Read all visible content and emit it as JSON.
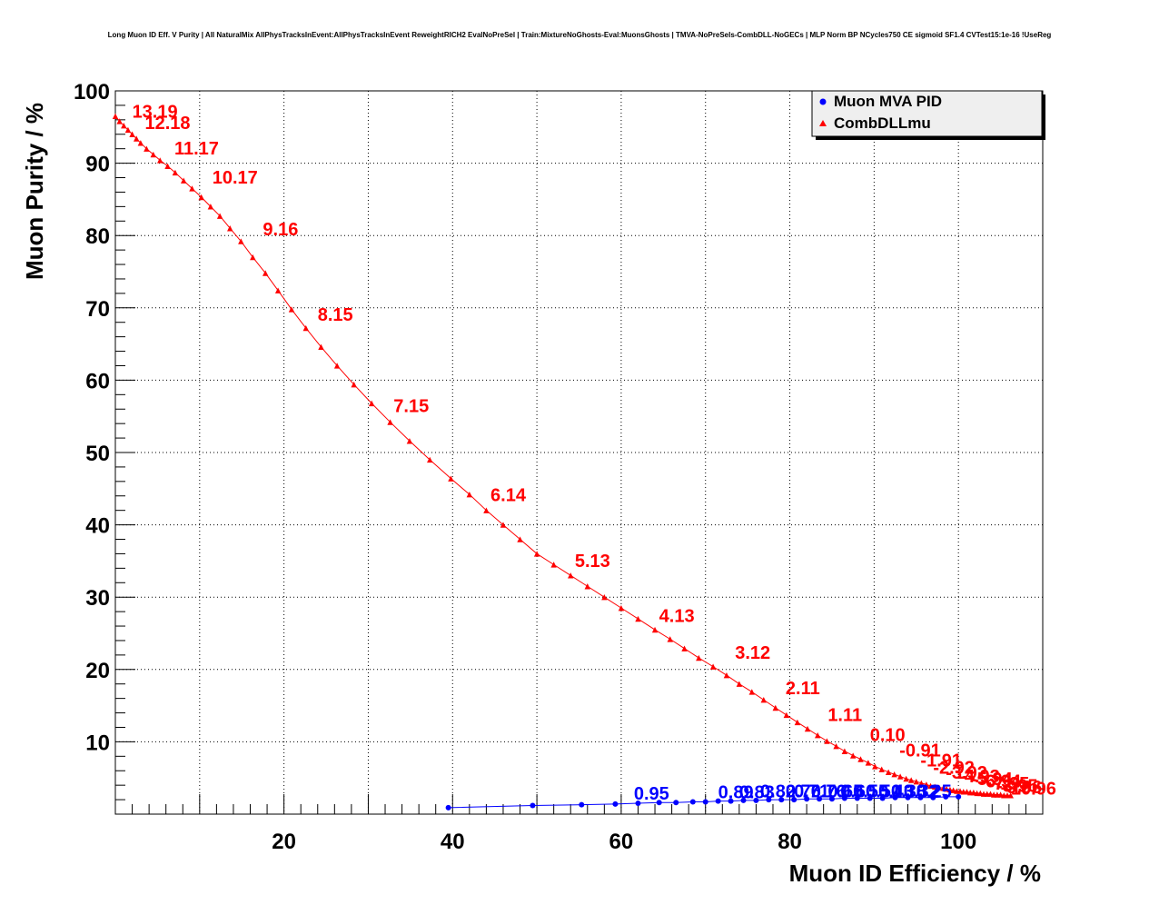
{
  "chart_data": {
    "type": "scatter",
    "title": "Long Muon ID Eff. V Purity | All NaturalMix AllPhysTracksInEvent:AllPhysTracksInEvent ReweightRICH2 EvalNoPreSel | Train:MixtureNoGhosts-Eval:MuonsGhosts | TMVA-NoPreSels-CombDLL-NoGECs | MLP Norm BP NCycles750 CE sigmoid SF1.4 CVTest15:1e-16 !UseReg",
    "xlabel": "Muon ID Efficiency / %",
    "ylabel": "Muon Purity / %",
    "xlim": [
      0,
      110
    ],
    "ylim": [
      0,
      100
    ],
    "x_ticks": [
      "20",
      "40",
      "60",
      "80",
      "100"
    ],
    "y_ticks": [
      "10",
      "20",
      "30",
      "40",
      "50",
      "60",
      "70",
      "80",
      "90",
      "100"
    ],
    "grid": true,
    "legend_position": "top-right",
    "series": [
      {
        "name": "Muon MVA PID",
        "color": "#0000ff",
        "marker": "circle",
        "x": [
          39.5,
          49.5,
          55.3,
          59.3,
          62.0,
          64.5,
          66.5,
          68.5,
          70.0,
          71.5,
          73.0,
          74.5,
          76.0,
          77.5,
          79.0,
          80.5,
          82.0,
          83.5,
          85.0,
          86.5,
          88.0,
          89.5,
          91.0,
          92.5,
          94.0,
          95.5,
          97.0,
          98.5,
          100.0
        ],
        "y": [
          0.9,
          1.2,
          1.3,
          1.4,
          1.5,
          1.6,
          1.6,
          1.7,
          1.7,
          1.8,
          1.8,
          1.9,
          1.9,
          2.0,
          2.0,
          2.0,
          2.1,
          2.1,
          2.1,
          2.2,
          2.2,
          2.2,
          2.2,
          2.3,
          2.3,
          2.3,
          2.3,
          2.4,
          2.4
        ]
      },
      {
        "name": "CombDLLmu",
        "color": "#ff0000",
        "marker": "triangle",
        "x": [
          0.0,
          0.5,
          1.0,
          1.5,
          2.0,
          2.5,
          3.0,
          3.7,
          4.5,
          5.3,
          6.2,
          7.1,
          8.1,
          9.1,
          10.2,
          11.3,
          12.4,
          13.6,
          14.9,
          16.3,
          17.8,
          19.3,
          20.9,
          22.6,
          24.4,
          26.3,
          28.3,
          30.4,
          32.6,
          34.9,
          37.3,
          39.8,
          42.0,
          44.0,
          46.0,
          48.0,
          50.0,
          52.0,
          54.0,
          56.0,
          58.0,
          60.0,
          62.0,
          64.0,
          65.8,
          67.5,
          69.2,
          70.9,
          72.5,
          74.0,
          75.5,
          76.9,
          78.3,
          79.6,
          80.9,
          82.1,
          83.3,
          84.4,
          85.5,
          86.5,
          87.5,
          88.4,
          89.3,
          90.1,
          90.9,
          91.7,
          92.4,
          93.1,
          93.8,
          94.4,
          95.0,
          95.6,
          96.2,
          96.7,
          97.2,
          97.7,
          98.2,
          98.6,
          99.0,
          99.4,
          99.8,
          100.2,
          100.6,
          101.0,
          101.4,
          101.8,
          102.2,
          102.6,
          103.0,
          103.4,
          103.8,
          104.2,
          104.6,
          105.0,
          105.4,
          105.8,
          106.2
        ],
        "y": [
          96.5,
          95.8,
          95.2,
          94.6,
          94.0,
          93.4,
          92.8,
          92.0,
          91.2,
          90.4,
          89.6,
          88.7,
          87.6,
          86.5,
          85.3,
          84.0,
          82.7,
          81.0,
          79.2,
          77.0,
          74.8,
          72.4,
          69.8,
          67.2,
          64.6,
          62.0,
          59.4,
          56.8,
          54.2,
          51.6,
          49.0,
          46.4,
          44.2,
          42.0,
          40.0,
          38.0,
          36.0,
          34.5,
          33.0,
          31.5,
          30.0,
          28.5,
          27.0,
          25.5,
          24.2,
          22.9,
          21.6,
          20.4,
          19.2,
          18.0,
          16.9,
          15.8,
          14.7,
          13.7,
          12.7,
          11.8,
          10.9,
          10.1,
          9.4,
          8.7,
          8.1,
          7.6,
          7.1,
          6.6,
          6.2,
          5.8,
          5.5,
          5.2,
          4.9,
          4.7,
          4.5,
          4.3,
          4.1,
          3.9,
          3.8,
          3.7,
          3.6,
          3.5,
          3.4,
          3.3,
          3.2,
          3.2,
          3.1,
          3.1,
          3.0,
          3.0,
          2.9,
          2.9,
          2.8,
          2.8,
          2.8,
          2.7,
          2.7,
          2.7,
          2.6,
          2.6,
          2.6
        ]
      }
    ],
    "annotations_red": [
      {
        "text": "13.19",
        "x": 2.0,
        "y": 96.3
      },
      {
        "text": "12.18",
        "x": 3.5,
        "y": 94.7
      },
      {
        "text": "11.17",
        "x": 7.0,
        "y": 91.2
      },
      {
        "text": "10.17",
        "x": 11.5,
        "y": 87.2
      },
      {
        "text": "9.16",
        "x": 17.5,
        "y": 80.0
      },
      {
        "text": "8.15",
        "x": 24.0,
        "y": 68.2
      },
      {
        "text": "7.15",
        "x": 33.0,
        "y": 55.6
      },
      {
        "text": "6.14",
        "x": 44.5,
        "y": 43.3
      },
      {
        "text": "5.13",
        "x": 54.5,
        "y": 34.2
      },
      {
        "text": "4.13",
        "x": 64.5,
        "y": 26.6
      },
      {
        "text": "3.12",
        "x": 73.5,
        "y": 21.5
      },
      {
        "text": "2.11",
        "x": 79.5,
        "y": 16.6
      },
      {
        "text": "1.11",
        "x": 84.5,
        "y": 12.9
      },
      {
        "text": "0.10",
        "x": 89.5,
        "y": 10.1
      },
      {
        "text": "-0.91",
        "x": 93.0,
        "y": 8.0
      },
      {
        "text": "-1.91",
        "x": 95.5,
        "y": 6.6
      },
      {
        "text": "-2.92",
        "x": 97.0,
        "y": 5.6
      },
      {
        "text": "-3.92",
        "x": 98.5,
        "y": 4.9
      },
      {
        "text": "-4.93",
        "x": 100.0,
        "y": 4.4
      },
      {
        "text": "-5.94",
        "x": 101.5,
        "y": 4.0
      },
      {
        "text": "-6.94",
        "x": 102.5,
        "y": 3.7
      },
      {
        "text": "-7.95",
        "x": 103.5,
        "y": 3.4
      },
      {
        "text": "-8.95",
        "x": 104.5,
        "y": 3.1
      },
      {
        "text": "-9.96",
        "x": 105.0,
        "y": 2.9
      },
      {
        "text": "-10.96",
        "x": 105.5,
        "y": 2.7
      }
    ],
    "annotations_blue": [
      {
        "text": "0.95",
        "x": 61.5,
        "y": 2.0
      },
      {
        "text": "0.89",
        "x": 71.5,
        "y": 2.2
      },
      {
        "text": "0.83",
        "x": 74.0,
        "y": 2.2
      },
      {
        "text": "0.82",
        "x": 76.5,
        "y": 2.3
      },
      {
        "text": "0.76",
        "x": 79.5,
        "y": 2.3
      },
      {
        "text": "0.71",
        "x": 80.5,
        "y": 2.3
      },
      {
        "text": "0.76",
        "x": 82.5,
        "y": 2.3
      },
      {
        "text": "0.65",
        "x": 84.5,
        "y": 2.3
      },
      {
        "text": "0.60",
        "x": 86.0,
        "y": 2.3
      },
      {
        "text": "0.55",
        "x": 87.5,
        "y": 2.3
      },
      {
        "text": "0.51",
        "x": 89.0,
        "y": 2.3
      },
      {
        "text": "0.43",
        "x": 90.5,
        "y": 2.3
      },
      {
        "text": "0.38",
        "x": 92.0,
        "y": 2.3
      },
      {
        "text": "0.32",
        "x": 93.5,
        "y": 2.3
      },
      {
        "text": "0.25",
        "x": 95.0,
        "y": 2.3
      }
    ]
  }
}
